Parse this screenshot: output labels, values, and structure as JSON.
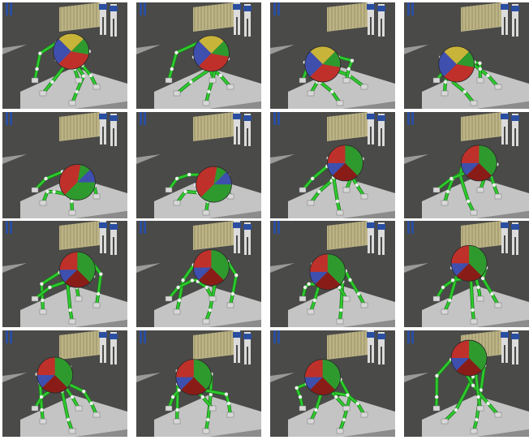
{
  "image": {
    "layout": {
      "rows": 4,
      "cols": 4
    },
    "colors": {
      "background": "#4a4a48",
      "floor": "#5a5a58",
      "platform_top": "#c4c4c4",
      "platform_side": "#8c8c8c",
      "container": "#bdb486",
      "robot_limb_green": "#2ecc2e",
      "robot_joint_white": "#eeeeee",
      "ball_red": "#c0302a",
      "ball_green": "#2e9a2e",
      "ball_blue": "#3e4fae",
      "ball_yellow": "#c9b43a",
      "human_white": "#dcdcdc",
      "human_blue": "#2a4ea0"
    },
    "frames": [
      {
        "ball_phase": "yellow-top",
        "ball": [
          0.55,
          0.46
        ],
        "pose": 0
      },
      {
        "ball_phase": "yellow-top",
        "ball": [
          0.6,
          0.48
        ],
        "pose": 1
      },
      {
        "ball_phase": "yellow-top",
        "ball": [
          0.42,
          0.58
        ],
        "pose": 2
      },
      {
        "ball_phase": "yellow-top",
        "ball": [
          0.42,
          0.58
        ],
        "pose": 3
      },
      {
        "ball_phase": "rotating",
        "ball": [
          0.6,
          0.66
        ],
        "pose": 4
      },
      {
        "ball_phase": "rotating",
        "ball": [
          0.62,
          0.68
        ],
        "pose": 5
      },
      {
        "ball_phase": "red-green",
        "ball": [
          0.6,
          0.48
        ],
        "pose": 6
      },
      {
        "ball_phase": "red-green",
        "ball": [
          0.6,
          0.48
        ],
        "pose": 7
      },
      {
        "ball_phase": "red-green",
        "ball": [
          0.6,
          0.46
        ],
        "pose": 8
      },
      {
        "ball_phase": "red-green",
        "ball": [
          0.6,
          0.44
        ],
        "pose": 9
      },
      {
        "ball_phase": "red-green",
        "ball": [
          0.46,
          0.48
        ],
        "pose": 10
      },
      {
        "ball_phase": "red-green",
        "ball": [
          0.52,
          0.4
        ],
        "pose": 11
      },
      {
        "ball_phase": "red-green",
        "ball": [
          0.42,
          0.42
        ],
        "pose": 12
      },
      {
        "ball_phase": "red-green",
        "ball": [
          0.46,
          0.44
        ],
        "pose": 13
      },
      {
        "ball_phase": "red-green",
        "ball": [
          0.42,
          0.44
        ],
        "pose": 14
      },
      {
        "ball_phase": "red-green",
        "ball": [
          0.52,
          0.26
        ],
        "pose": 15
      }
    ]
  }
}
